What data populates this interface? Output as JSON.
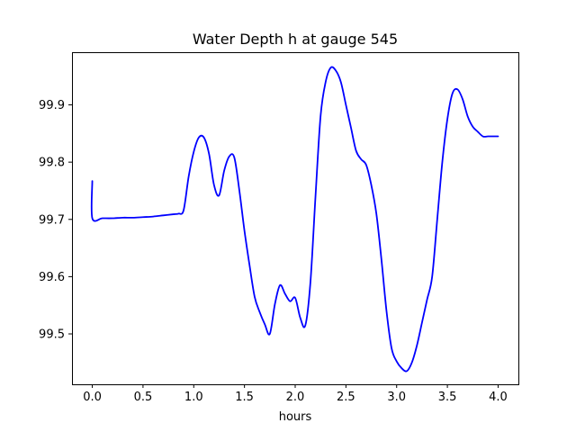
{
  "chart_data": {
    "type": "line",
    "title": "Water Depth h at gauge 545",
    "xlabel": "hours",
    "ylabel": "",
    "xlim": [
      -0.2,
      4.2
    ],
    "ylim": [
      99.412,
      99.992
    ],
    "xticks": [
      0.0,
      0.5,
      1.0,
      1.5,
      2.0,
      2.5,
      3.0,
      3.5,
      4.0
    ],
    "xtick_labels": [
      "0.0",
      "0.5",
      "1.0",
      "1.5",
      "2.0",
      "2.5",
      "3.0",
      "3.5",
      "4.0"
    ],
    "yticks": [
      99.5,
      99.6,
      99.7,
      99.8,
      99.9
    ],
    "ytick_labels": [
      "99.5",
      "99.6",
      "99.7",
      "99.8",
      "99.9"
    ],
    "grid": false,
    "legend": "none",
    "series": [
      {
        "color": "#0000ff",
        "x": [
          0.0,
          0.0,
          0.1,
          0.2,
          0.3,
          0.4,
          0.5,
          0.6,
          0.7,
          0.8,
          0.85,
          0.9,
          0.95,
          1.0,
          1.05,
          1.1,
          1.15,
          1.2,
          1.25,
          1.3,
          1.35,
          1.4,
          1.45,
          1.5,
          1.55,
          1.6,
          1.65,
          1.7,
          1.75,
          1.8,
          1.85,
          1.9,
          1.95,
          2.0,
          2.05,
          2.1,
          2.15,
          2.2,
          2.25,
          2.3,
          2.35,
          2.4,
          2.45,
          2.5,
          2.55,
          2.6,
          2.65,
          2.7,
          2.75,
          2.8,
          2.85,
          2.9,
          2.95,
          3.0,
          3.05,
          3.1,
          3.15,
          3.2,
          3.25,
          3.3,
          3.35,
          3.4,
          3.45,
          3.5,
          3.55,
          3.6,
          3.65,
          3.7,
          3.75,
          3.8,
          3.85,
          3.9,
          3.95,
          4.0
        ],
        "y": [
          99.767,
          99.702,
          99.702,
          99.702,
          99.703,
          99.703,
          99.704,
          99.705,
          99.707,
          99.709,
          99.71,
          99.716,
          99.775,
          99.818,
          99.843,
          99.843,
          99.815,
          99.76,
          99.742,
          99.785,
          99.81,
          99.808,
          99.75,
          99.68,
          99.62,
          99.565,
          99.538,
          99.517,
          99.5,
          99.552,
          99.585,
          99.57,
          99.557,
          99.563,
          99.528,
          99.515,
          99.59,
          99.74,
          99.88,
          99.94,
          99.965,
          99.96,
          99.94,
          99.9,
          99.86,
          99.82,
          99.805,
          99.795,
          99.76,
          99.71,
          99.63,
          99.54,
          99.475,
          99.452,
          99.44,
          99.435,
          99.45,
          99.48,
          99.52,
          99.56,
          99.6,
          99.7,
          99.8,
          99.875,
          99.92,
          99.927,
          99.91,
          99.88,
          99.862,
          99.853,
          99.845,
          99.845,
          99.845,
          99.845
        ]
      }
    ]
  }
}
